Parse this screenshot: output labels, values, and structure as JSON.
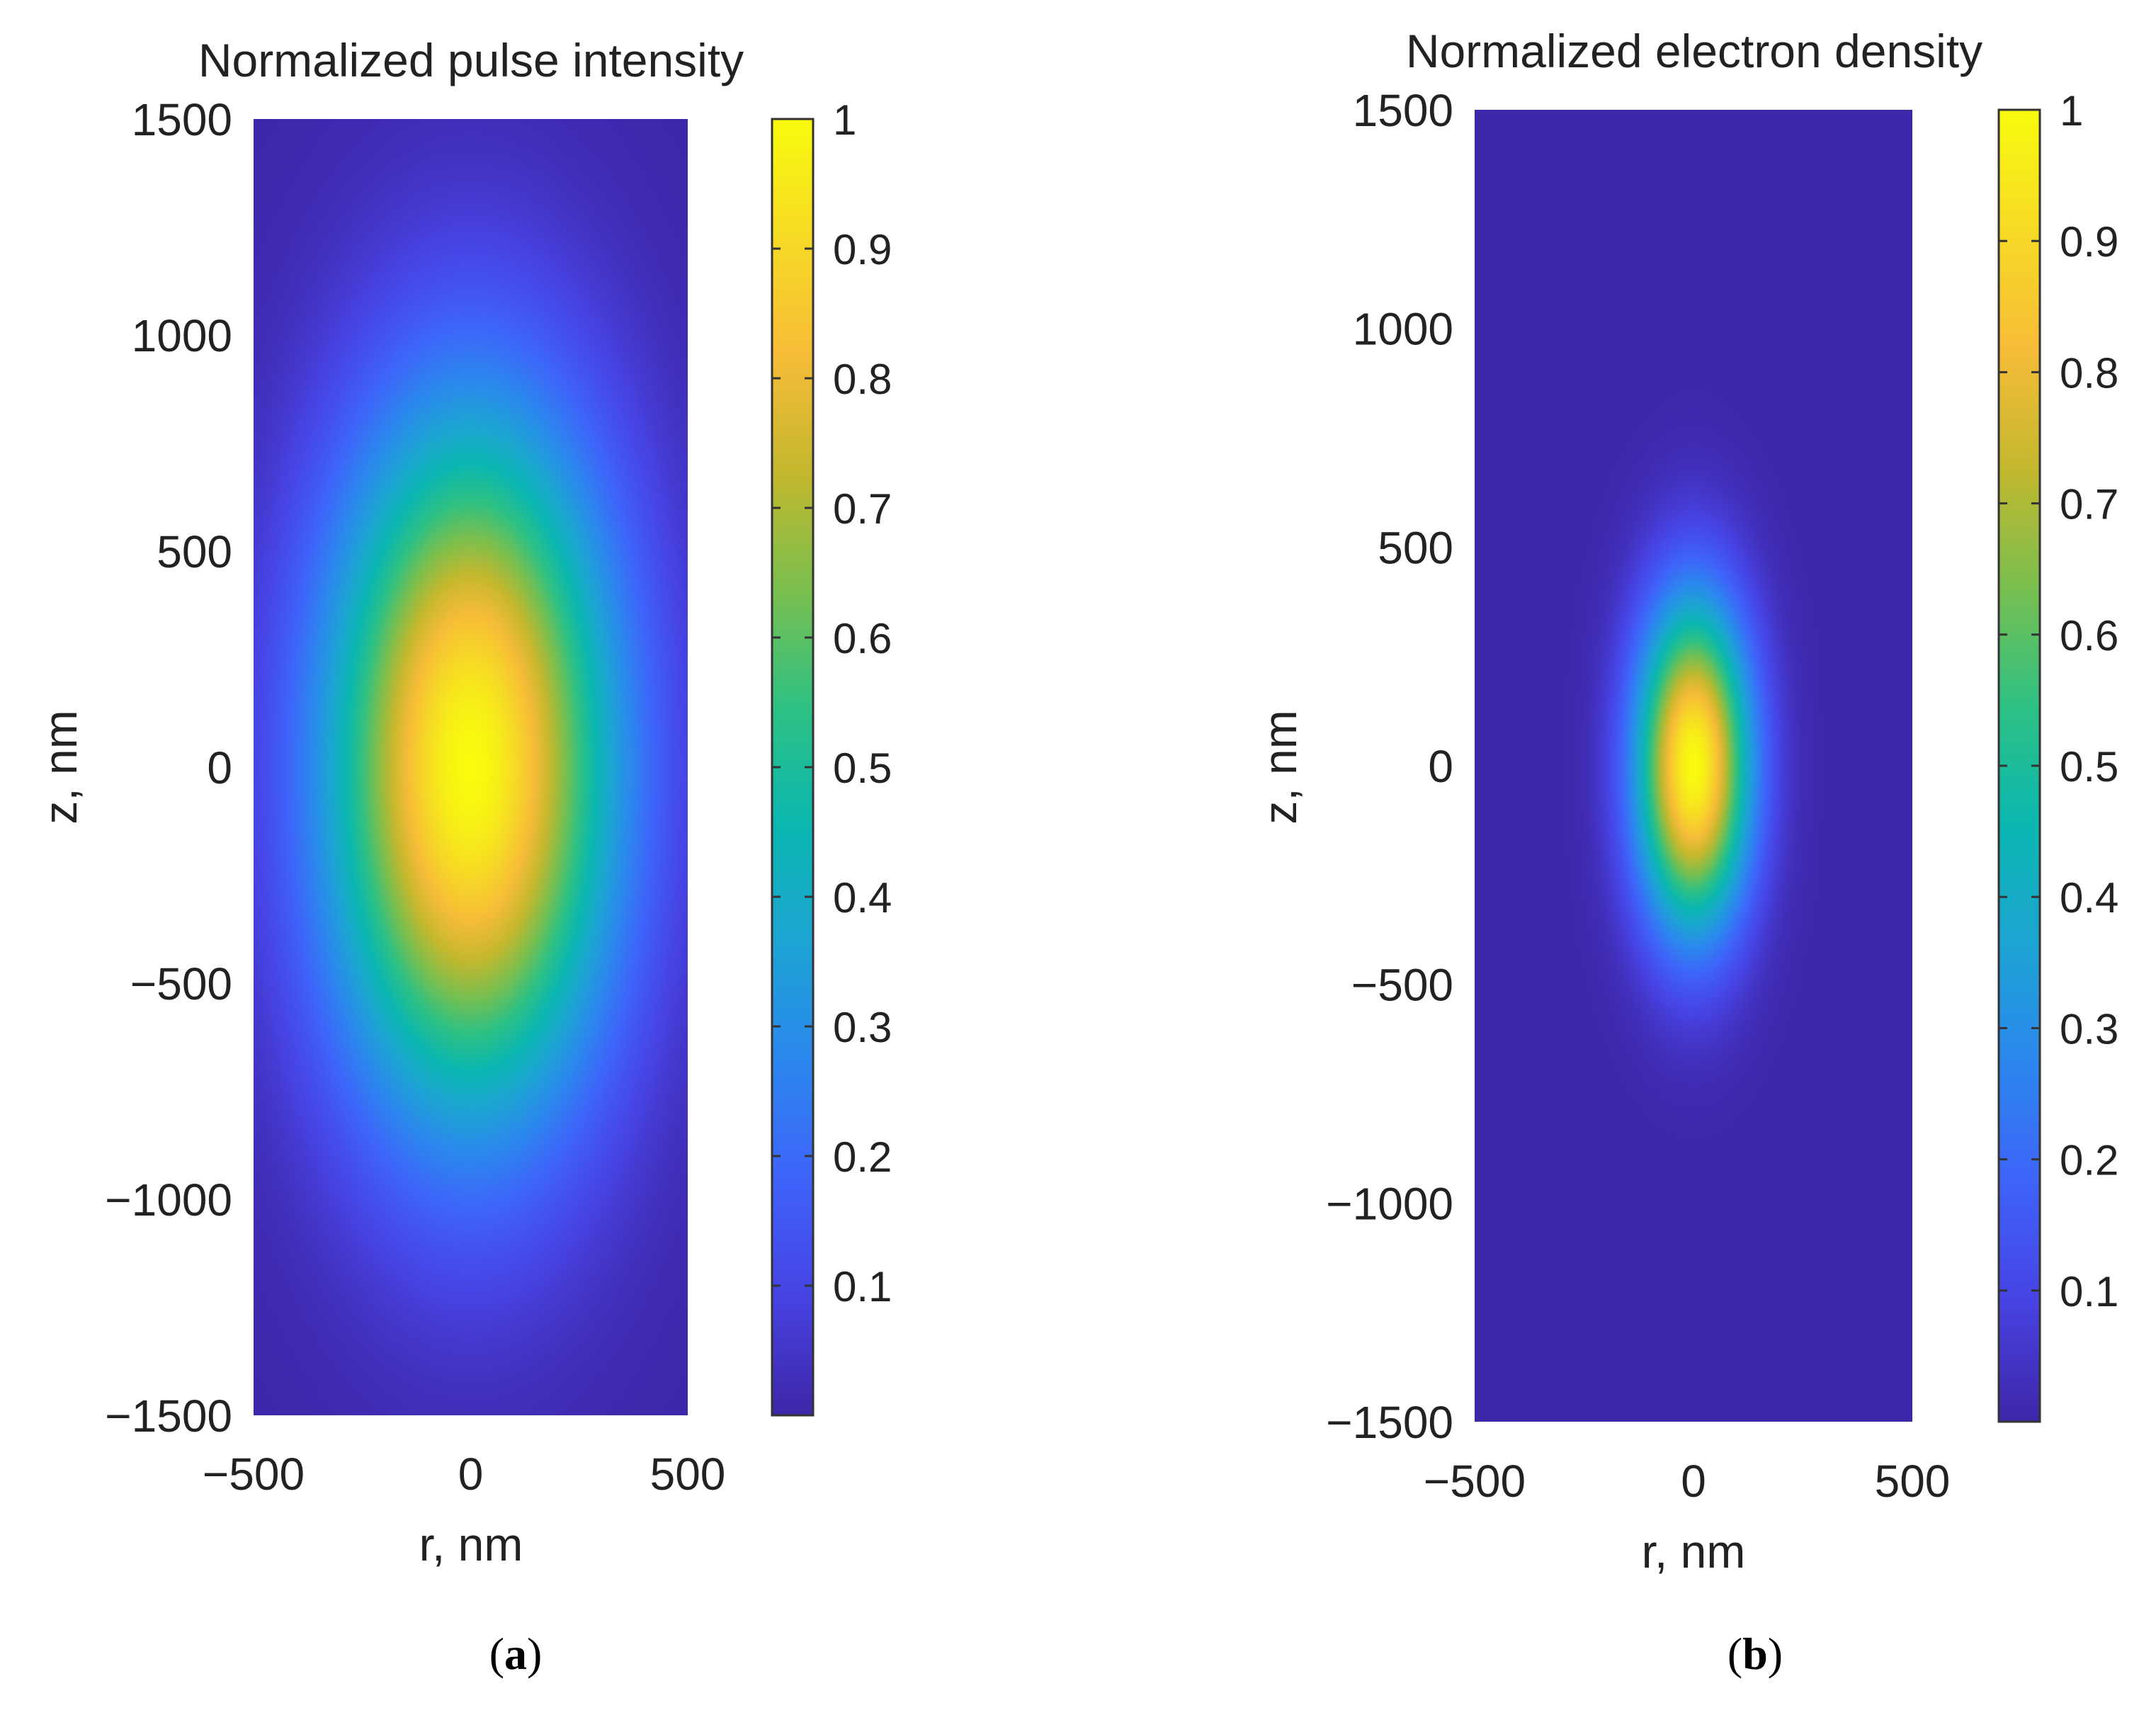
{
  "chart_data": [
    {
      "type": "heatmap",
      "panel_label": "a",
      "title": "Normalized pulse intensity",
      "xlabel": "r, nm",
      "ylabel": "z, nm",
      "xlim": [
        -500,
        500
      ],
      "ylim": [
        -1500,
        1500
      ],
      "xticks": [
        -500,
        0,
        500
      ],
      "yticks": [
        1500,
        1000,
        500,
        0,
        -500,
        -1000,
        -1500
      ],
      "colorbar": {
        "range": [
          0,
          1
        ],
        "ticks": [
          1,
          0.9,
          0.8,
          0.7,
          0.6,
          0.5,
          0.4,
          0.3,
          0.2,
          0.1
        ],
        "colormap": "parula"
      },
      "field": {
        "shape": "gaussian",
        "center_r": 0,
        "center_z": 0,
        "peak": 1,
        "sigma_r": 230,
        "sigma_z": 560,
        "floor": 0
      }
    },
    {
      "type": "heatmap",
      "panel_label": "b",
      "title": "Normalized electron density",
      "xlabel": "r, nm",
      "ylabel": "z, nm",
      "xlim": [
        -500,
        500
      ],
      "ylim": [
        -1500,
        1500
      ],
      "xticks": [
        -500,
        0,
        500
      ],
      "yticks": [
        1500,
        1000,
        500,
        0,
        -500,
        -1000,
        -1500
      ],
      "colorbar": {
        "range": [
          0,
          1
        ],
        "ticks": [
          1,
          0.9,
          0.8,
          0.7,
          0.6,
          0.5,
          0.4,
          0.3,
          0.2,
          0.1
        ],
        "colormap": "parula"
      },
      "field": {
        "shape": "gaussian",
        "center_r": 0,
        "center_z": 0,
        "peak": 1,
        "sigma_r": 90,
        "sigma_z": 260,
        "floor": 0
      }
    }
  ],
  "colormap_stops": [
    "#3e26a8",
    "#4743e3",
    "#3f63fa",
    "#2c87ef",
    "#1da4d4",
    "#0bb7b1",
    "#2ec184",
    "#7abf4f",
    "#c4b82e",
    "#f7bc38",
    "#f6db25",
    "#f9fb0e"
  ]
}
